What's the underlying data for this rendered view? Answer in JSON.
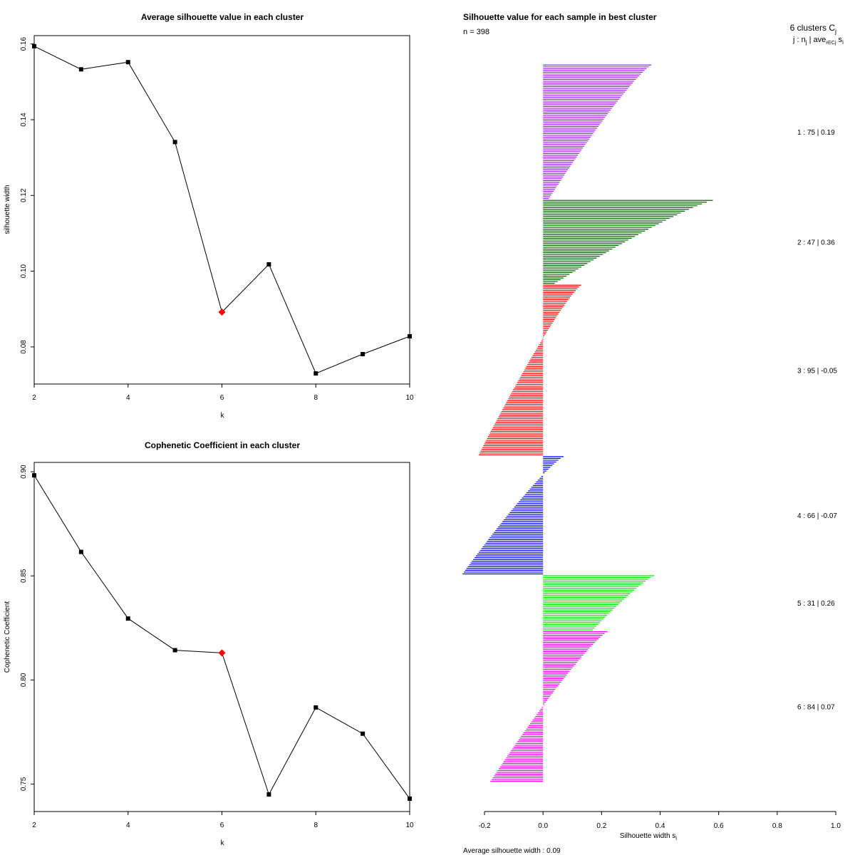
{
  "chart_data": [
    {
      "type": "line",
      "title": "Average silhouette value in each cluster",
      "xlabel": "k",
      "ylabel": "silhouette width",
      "x": [
        2,
        3,
        4,
        5,
        6,
        7,
        8,
        9,
        10
      ],
      "values": [
        0.1594,
        0.1533,
        0.1552,
        0.1341,
        0.0892,
        0.1018,
        0.073,
        0.0781,
        0.0828
      ],
      "highlight_k": 6,
      "highlight_color": "#ff0000",
      "xlim": [
        2,
        10
      ],
      "ylim": [
        0.0702,
        0.1622
      ],
      "xticks": [
        "2",
        "4",
        "6",
        "8",
        "10"
      ],
      "yticks": [
        "0.08",
        "0.10",
        "0.12",
        "0.14",
        "0.16"
      ]
    },
    {
      "type": "line",
      "title": "Cophenetic Coefficient in each cluster",
      "xlabel": "k",
      "ylabel": "Cophenetic Coefficient",
      "x": [
        2,
        3,
        4,
        5,
        6,
        7,
        8,
        9,
        10
      ],
      "values": [
        0.8983,
        0.8615,
        0.8295,
        0.8143,
        0.813,
        0.745,
        0.7868,
        0.7742,
        0.743
      ],
      "highlight_k": 6,
      "highlight_color": "#ff0000",
      "xlim": [
        2,
        10
      ],
      "ylim": [
        0.7368,
        0.9045
      ],
      "xticks": [
        "2",
        "4",
        "6",
        "8",
        "10"
      ],
      "yticks": [
        "0.75",
        "0.80",
        "0.85",
        "0.90"
      ]
    },
    {
      "type": "bar",
      "orientation": "horizontal",
      "title": "Silhouette value for each sample in best cluster",
      "n_label": "n = 398",
      "xlabel": "Silhouette width s",
      "xlabel_sub": "i",
      "xlim": [
        -0.2,
        1.0
      ],
      "xticks": [
        "-0.2",
        "0.0",
        "0.2",
        "0.4",
        "0.6",
        "0.8",
        "1.0"
      ],
      "legend_title": "6  clusters  C",
      "legend_title_sub": "j",
      "legend_header": "j :  n",
      "legend_header_sub": "j",
      "legend_header_rest": " | ave",
      "legend_header_sub2": "i∈Cj",
      "legend_header_end": " s",
      "legend_header_sub3": "i",
      "avg_label": "Average silhouette width :  0.09",
      "clusters": [
        {
          "label": "1 :   75  |  0.19",
          "n": 75,
          "color": "#a020f0",
          "max": 0.37,
          "min": 0.02
        },
        {
          "label": "2 :   47  |  0.36",
          "n": 47,
          "color": "#006400",
          "max": 0.58,
          "min": 0.04
        },
        {
          "label": "3 :   95  |  -0.05",
          "n": 95,
          "color": "#ff0000",
          "max": 0.13,
          "min": -0.22
        },
        {
          "label": "4 :   66  |  -0.07",
          "n": 66,
          "color": "#0000ff",
          "max": 0.07,
          "min": -0.275
        },
        {
          "label": "5 :   31  |  0.26",
          "n": 31,
          "color": "#00ee00",
          "max": 0.38,
          "min": 0.17
        },
        {
          "label": "6 :   84  |  0.07",
          "n": 84,
          "color": "#ee00ee",
          "max": 0.22,
          "min": -0.18
        }
      ]
    }
  ]
}
